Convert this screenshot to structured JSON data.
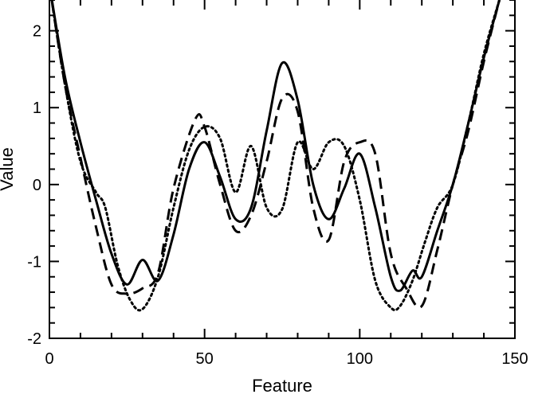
{
  "chart_data": {
    "type": "line",
    "title": "",
    "xlabel": "Feature",
    "ylabel": "Value",
    "xlim": [
      0,
      150
    ],
    "ylim": [
      -2,
      2.4
    ],
    "xticks": [
      0,
      50,
      100,
      150
    ],
    "xtick_labels": [
      "0",
      "50",
      "100",
      "150"
    ],
    "yticks": [
      -2,
      -1,
      0,
      1,
      2
    ],
    "ytick_labels": [
      "-2",
      "-1",
      "0",
      "1",
      "2"
    ],
    "grid": false,
    "legend": "none",
    "series": [
      {
        "style": "solid",
        "color": "#000000",
        "x": [
          0,
          5,
          10,
          15,
          20,
          25,
          30,
          35,
          40,
          45,
          50,
          55,
          60,
          65,
          70,
          75,
          80,
          85,
          90,
          95,
          100,
          105,
          110,
          113,
          117,
          120,
          125,
          130,
          135,
          140,
          145
        ],
        "y": [
          2.6,
          1.4,
          0.55,
          -0.2,
          -0.9,
          -1.3,
          -0.98,
          -1.25,
          -0.65,
          0.2,
          0.55,
          0.1,
          -0.45,
          -0.3,
          0.7,
          1.58,
          1.1,
          0.0,
          -0.45,
          -0.05,
          0.4,
          -0.3,
          -1.2,
          -1.38,
          -1.12,
          -1.2,
          -0.6,
          0.0,
          0.8,
          1.65,
          2.4
        ]
      },
      {
        "style": "dashed",
        "color": "#000000",
        "x": [
          0,
          5,
          10,
          15,
          20,
          25,
          30,
          35,
          40,
          47,
          50,
          55,
          60,
          65,
          70,
          75,
          80,
          85,
          90,
          95,
          100,
          105,
          110,
          115,
          120,
          125,
          130,
          135,
          140,
          145
        ],
        "y": [
          2.6,
          1.3,
          0.35,
          -0.55,
          -1.3,
          -1.42,
          -1.35,
          -1.15,
          -0.05,
          0.85,
          0.75,
          0.0,
          -0.6,
          -0.4,
          0.3,
          1.12,
          0.95,
          -0.3,
          -0.72,
          0.3,
          0.55,
          0.4,
          -0.9,
          -1.35,
          -1.58,
          -0.85,
          0.0,
          0.7,
          1.6,
          2.4
        ]
      },
      {
        "style": "dotted",
        "color": "#000000",
        "x": [
          0,
          5,
          10,
          15,
          18,
          22,
          26,
          30,
          35,
          40,
          45,
          50,
          55,
          60,
          65,
          70,
          75,
          80,
          85,
          90,
          95,
          100,
          105,
          110,
          113,
          117,
          121,
          125,
          130,
          135,
          140,
          145
        ],
        "y": [
          2.6,
          1.3,
          0.3,
          -0.1,
          -0.3,
          -1.05,
          -1.5,
          -1.62,
          -1.2,
          -0.3,
          0.45,
          0.75,
          0.6,
          -0.1,
          0.5,
          -0.3,
          -0.32,
          0.55,
          0.2,
          0.55,
          0.5,
          -0.2,
          -1.25,
          -1.6,
          -1.58,
          -1.25,
          -0.75,
          -0.3,
          0.0,
          0.8,
          1.7,
          2.4
        ]
      }
    ]
  }
}
